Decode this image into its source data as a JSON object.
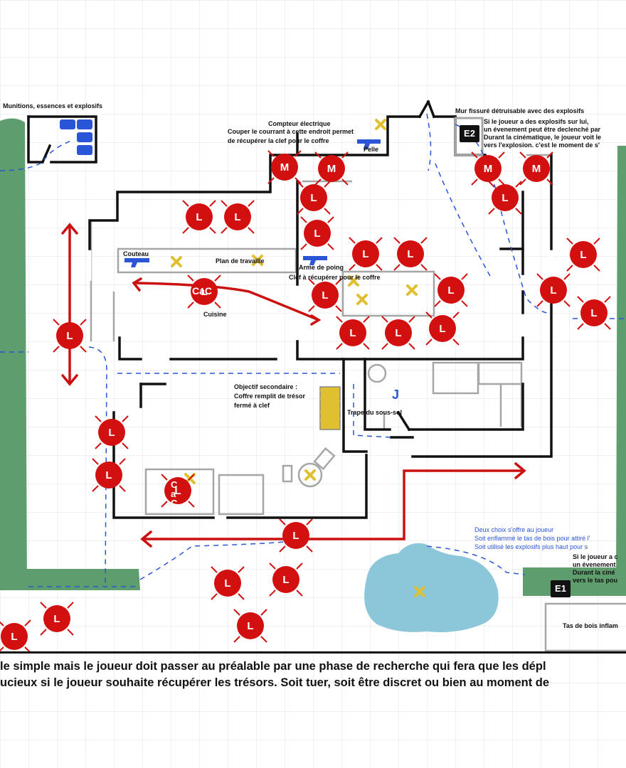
{
  "labels": {
    "ammo_room": "Munitions, essences et explosifs",
    "electric_meter_title": "Compteur électrique",
    "electric_meter_line1": "Couper le courrant à cette endroit permet",
    "electric_meter_line2": "de récupérer la clef pour le coffre",
    "shovel": "Pelle",
    "cracked_wall": "Mur fissuré détruisable avec des explosifs",
    "knife": "Couteau",
    "workbench": "Plan de travaille",
    "fist_weapon": "Arme de poing",
    "chest_key": "Clef à récupérer pour le coffre",
    "kitchen": "Cuisine",
    "cac_top": "CaC",
    "cac_bottom": "CaC",
    "secondary_objective_line1": "Objectif secondaire :",
    "secondary_objective_line2": "Coffre remplit de trésor",
    "secondary_objective_line3": "fermé à clef",
    "cellar_hatch": "Trape du sous-sol",
    "hatch_marker": "J",
    "woodpile": "Tas de bois inflam",
    "exit1": "E1",
    "exit2": "E2"
  },
  "notes": {
    "e2_lines": [
      "Si le joueur a des explosifs sur lui,",
      "un évenement  peut être declenché par",
      "Durant la cinématique, le joueur voit le",
      "vers l'explosion. c'est le moment de s'"
    ],
    "choice_lines": [
      "Deux choix s'offre au joueur",
      "Soit enflammé le tas de bois pour attiré l'",
      "Soit utilisé les explosifs plus haut pour s"
    ],
    "e1_lines": [
      "Si le joueur a c",
      "un évenement",
      "Durant la ciné",
      "vers le tas pou"
    ]
  },
  "footer": {
    "line1": "le simple mais le joueur doit passer au préalable par une phase de recherche qui fera que les dépl",
    "line2": "ucieux si le joueur souhaite récupérer les trésors. Soit tuer, soit être discret ou bien au moment de"
  },
  "enemies": [
    {
      "letter": "M"
    },
    {
      "letter": "M"
    },
    {
      "letter": "M"
    },
    {
      "letter": "M"
    },
    {
      "letter": "L"
    },
    {
      "letter": "L"
    },
    {
      "letter": "L"
    },
    {
      "letter": "L"
    },
    {
      "letter": "L"
    },
    {
      "letter": "L"
    },
    {
      "letter": "L"
    },
    {
      "letter": "L"
    },
    {
      "letter": "L"
    },
    {
      "letter": "L"
    },
    {
      "letter": "L"
    },
    {
      "letter": "L"
    },
    {
      "letter": "L"
    },
    {
      "letter": "L"
    },
    {
      "letter": "L"
    },
    {
      "letter": "L"
    },
    {
      "letter": "L"
    },
    {
      "letter": "L"
    },
    {
      "letter": "L"
    },
    {
      "letter": "L"
    },
    {
      "letter": "L"
    },
    {
      "letter": "L"
    },
    {
      "letter": "L"
    },
    {
      "letter": "L"
    },
    {
      "letter": "L"
    },
    {
      "letter": "L"
    }
  ],
  "colors": {
    "grid": "#e2e2e2",
    "wall": "#111111",
    "interior": "#a6a6a6",
    "foliage": "#5e9e6e",
    "enemy": "#d31010",
    "path_blue": "#2a55d6",
    "route_red": "#cc1111",
    "item_yellow": "#e0c030",
    "water": "#8cc6d9",
    "weapon_blue": "#2a55d6"
  }
}
